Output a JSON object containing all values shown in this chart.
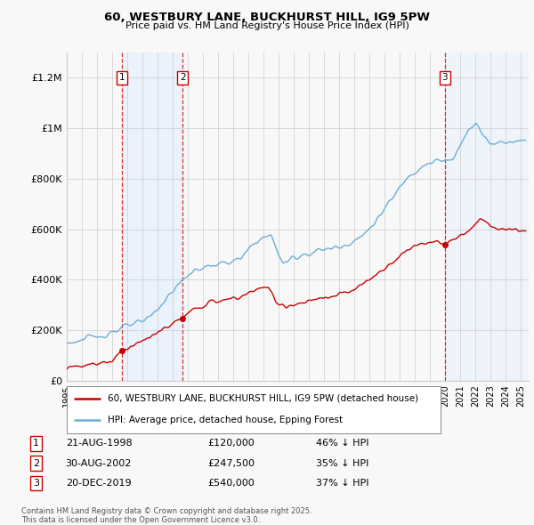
{
  "title_line1": "60, WESTBURY LANE, BUCKHURST HILL, IG9 5PW",
  "title_line2": "Price paid vs. HM Land Registry's House Price Index (HPI)",
  "ylabel_ticks": [
    "£0",
    "£200K",
    "£400K",
    "£600K",
    "£800K",
    "£1M",
    "£1.2M"
  ],
  "ytick_values": [
    0,
    200000,
    400000,
    600000,
    800000,
    1000000,
    1200000
  ],
  "ylim": [
    0,
    1300000
  ],
  "xlim_start": 1995.0,
  "xlim_end": 2025.5,
  "sale_dates": [
    1998.644,
    2002.664,
    2019.97
  ],
  "sale_prices": [
    120000,
    247500,
    540000
  ],
  "sale_labels": [
    "1",
    "2",
    "3"
  ],
  "legend_line1": "60, WESTBURY LANE, BUCKHURST HILL, IG9 5PW (detached house)",
  "legend_line2": "HPI: Average price, detached house, Epping Forest",
  "table_data": [
    {
      "label": "1",
      "date": "21-AUG-1998",
      "price": "£120,000",
      "hpi": "46% ↓ HPI"
    },
    {
      "label": "2",
      "date": "30-AUG-2002",
      "price": "£247,500",
      "hpi": "35% ↓ HPI"
    },
    {
      "label": "3",
      "date": "20-DEC-2019",
      "price": "£540,000",
      "hpi": "37% ↓ HPI"
    }
  ],
  "footnote": "Contains HM Land Registry data © Crown copyright and database right 2025.\nThis data is licensed under the Open Government Licence v3.0.",
  "hpi_color": "#6baed6",
  "price_color": "#cc0000",
  "shade_color": "#ddeeff",
  "grid_color": "#cccccc",
  "background_color": "#f8f8f8"
}
